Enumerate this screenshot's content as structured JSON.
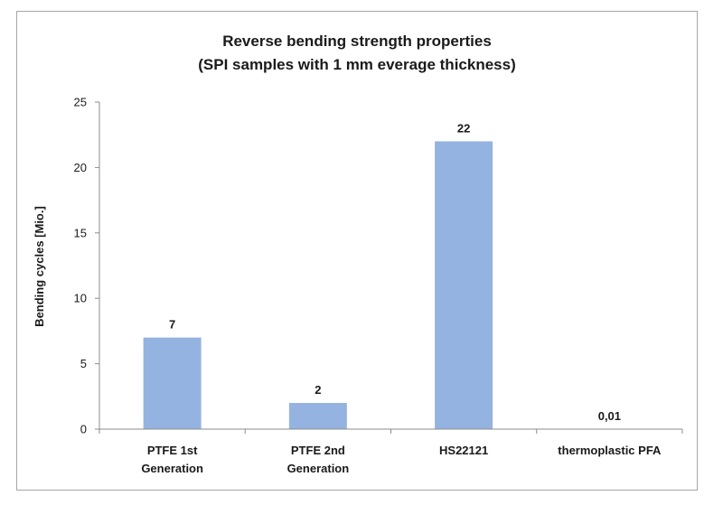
{
  "chart_data": {
    "type": "bar",
    "title": "Reverse bending strength properties",
    "subtitle": "(SPI samples with 1 mm everage thickness)",
    "xlabel": "",
    "ylabel": "Bending cycles [Mio.]",
    "categories": [
      [
        "PTFE 1st",
        "Generation"
      ],
      [
        "PTFE 2nd",
        "Generation"
      ],
      [
        "HS22121"
      ],
      [
        "thermoplastic PFA"
      ]
    ],
    "values": [
      7,
      2,
      22,
      0.01
    ],
    "data_labels": [
      "7",
      "2",
      "22",
      "0,01"
    ],
    "ylim": [
      0,
      25
    ],
    "yticks": [
      0,
      5,
      10,
      15,
      20,
      25
    ],
    "grid": false,
    "legend": "none",
    "bar_color": "#95b3e0",
    "axis_color": "#8c8c8c",
    "text_color": "#1a1a1a"
  }
}
